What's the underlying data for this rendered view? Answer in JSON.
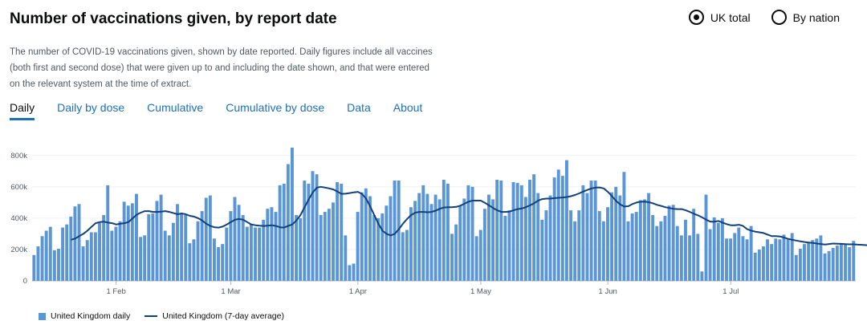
{
  "header": {
    "title": "Number of vaccinations given, by report date"
  },
  "view_toggle": {
    "options": [
      {
        "label": "UK total",
        "selected": true
      },
      {
        "label": "By nation",
        "selected": false
      }
    ]
  },
  "description": "The number of COVID-19 vaccinations given, shown by date reported. Daily figures include all vaccines (both first and second dose) that were given up to and including the date shown, and that were entered on the relevant system at the time of extract.",
  "tabs": [
    {
      "label": "Daily",
      "active": true
    },
    {
      "label": "Daily by dose",
      "active": false
    },
    {
      "label": "Cumulative",
      "active": false
    },
    {
      "label": "Cumulative by dose",
      "active": false
    },
    {
      "label": "Data",
      "active": false
    },
    {
      "label": "About",
      "active": false
    }
  ],
  "legend": {
    "bars": "United Kingdom daily",
    "line": "United Kingdom (7-day average)"
  },
  "colors": {
    "bar": "#5a95d5",
    "line": "#12407c",
    "active_tab_underline": "#1d70b8",
    "link": "#1d70b8"
  },
  "chart_data": {
    "type": "bar",
    "series": [
      {
        "name": "United Kingdom daily",
        "type": "bar",
        "values": [
          165000,
          220000,
          285000,
          320000,
          345000,
          195000,
          205000,
          340000,
          360000,
          410000,
          475000,
          490000,
          220000,
          260000,
          310000,
          310000,
          370000,
          420000,
          610000,
          320000,
          345000,
          380000,
          505000,
          480000,
          495000,
          555000,
          280000,
          290000,
          425000,
          430000,
          510000,
          550000,
          320000,
          290000,
          370000,
          490000,
          430000,
          420000,
          240000,
          265000,
          380000,
          445000,
          530000,
          545000,
          270000,
          215000,
          235000,
          340000,
          445000,
          535000,
          485000,
          420000,
          345000,
          360000,
          340000,
          340000,
          390000,
          460000,
          470000,
          440000,
          610000,
          620000,
          745000,
          850000,
          420000,
          400000,
          640000,
          620000,
          700000,
          680000,
          420000,
          440000,
          460000,
          500000,
          630000,
          620000,
          290000,
          100000,
          110000,
          440000,
          565000,
          590000,
          540000,
          420000,
          400000,
          430000,
          480000,
          540000,
          640000,
          640000,
          310000,
          325000,
          470000,
          510000,
          560000,
          610000,
          555000,
          490000,
          550000,
          520000,
          645000,
          620000,
          300000,
          360000,
          480000,
          525000,
          610000,
          600000,
          285000,
          325000,
          460000,
          550000,
          520000,
          645000,
          640000,
          415000,
          450000,
          630000,
          625000,
          610000,
          535000,
          645000,
          680000,
          560000,
          390000,
          450000,
          545000,
          660000,
          710000,
          670000,
          770000,
          450000,
          380000,
          450000,
          610000,
          560000,
          640000,
          640000,
          445000,
          380000,
          470000,
          565000,
          600000,
          545000,
          695000,
          380000,
          430000,
          440000,
          515000,
          520000,
          560000,
          420000,
          350000,
          380000,
          415000,
          480000,
          485000,
          350000,
          290000,
          390000,
          290000,
          460000,
          300000,
          60000,
          550000,
          330000,
          405000,
          370000,
          400000,
          270000,
          270000,
          305000,
          340000,
          285000,
          265000,
          350000,
          180000,
          200000,
          220000,
          265000,
          235000,
          270000,
          265000,
          295000,
          265000,
          305000,
          165000,
          205000,
          235000,
          245000,
          260000,
          270000,
          290000,
          175000,
          190000,
          210000,
          225000,
          235000,
          230000,
          215000,
          255000
        ]
      },
      {
        "name": "United Kingdom (7-day average)",
        "type": "line",
        "values": [
          262000,
          270000,
          285000,
          300000,
          320000,
          345000,
          368000,
          375000,
          378000,
          372000,
          368000,
          360000,
          364000,
          368000,
          375000,
          398000,
          422000,
          435000,
          445000,
          445000,
          440000,
          440000,
          442000,
          445000,
          440000,
          432000,
          425000,
          430000,
          425000,
          415000,
          410000,
          400000,
          385000,
          365000,
          350000,
          342000,
          340000,
          346000,
          360000,
          375000,
          390000,
          395000,
          390000,
          375000,
          360000,
          355000,
          352000,
          350000,
          352000,
          355000,
          350000,
          342000,
          340000,
          350000,
          360000,
          385000,
          420000,
          470000,
          520000,
          565000,
          595000,
          600000,
          595000,
          590000,
          583000,
          570000,
          555000,
          556000,
          560000,
          565000,
          568000,
          555000,
          525000,
          475000,
          420000,
          365000,
          320000,
          300000,
          290000,
          300000,
          330000,
          365000,
          395000,
          420000,
          435000,
          440000,
          440000,
          438000,
          440000,
          448000,
          460000,
          468000,
          470000,
          470000,
          472000,
          480000,
          492000,
          505000,
          512000,
          512000,
          512000,
          498000,
          482000,
          465000,
          450000,
          440000,
          440000,
          442000,
          450000,
          458000,
          462000,
          470000,
          482000,
          495000,
          512000,
          522000,
          525000,
          525000,
          528000,
          530000,
          532000,
          535000,
          540000,
          548000,
          558000,
          570000,
          580000,
          590000,
          595000,
          596000,
          590000,
          568000,
          540000,
          510000,
          488000,
          474000,
          476000,
          490000,
          500000,
          505000,
          506000,
          502000,
          495000,
          485000,
          478000,
          470000,
          465000,
          460000,
          458000,
          458000,
          450000,
          440000,
          428000,
          418000,
          405000,
          390000,
          378000,
          378000,
          382000,
          372000,
          362000,
          355000,
          355000,
          358000,
          350000,
          330000,
          320000,
          314000,
          310000,
          305000,
          295000,
          285000,
          285000,
          283000,
          276000,
          268000,
          262000,
          257000,
          252000,
          248000,
          245000,
          242000,
          238000,
          235000,
          232000,
          235000,
          238000,
          237000,
          236000,
          234000,
          233000,
          233000,
          231000,
          230000,
          228000,
          225000,
          220000,
          216000,
          214000,
          213000
        ]
      }
    ],
    "x_ticks": [
      "1 Feb",
      "1 Mar",
      "1 Apr",
      "1 May",
      "1 Jun",
      "1 Jul"
    ],
    "x_tick_day_index": [
      20,
      48,
      79,
      109,
      140,
      170
    ],
    "y_ticks": [
      "0",
      "200k",
      "400k",
      "600k",
      "800k"
    ],
    "y_tick_values": [
      0,
      200000,
      400000,
      600000,
      800000
    ],
    "ylim": [
      0,
      850000
    ],
    "grid": true,
    "legend_position": "bottom-left"
  }
}
